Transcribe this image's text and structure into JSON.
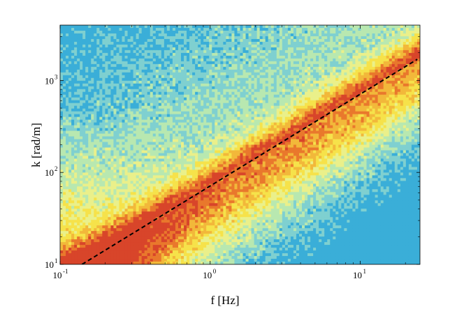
{
  "chart_data": {
    "type": "heatmap",
    "title": "",
    "xlabel": "f [Hz]",
    "ylabel": "k [rad/m]",
    "x_scale": "log",
    "y_scale": "log",
    "xlim": [
      0.1,
      25
    ],
    "ylim": [
      10,
      4000
    ],
    "x_ticks": [
      {
        "value": 0.1,
        "base": "10",
        "exp": "-1"
      },
      {
        "value": 1,
        "base": "10",
        "exp": "0"
      },
      {
        "value": 10,
        "base": "10",
        "exp": "1"
      }
    ],
    "y_ticks": [
      {
        "value": 10,
        "base": "10",
        "exp": "1"
      },
      {
        "value": 100,
        "base": "10",
        "exp": "2"
      },
      {
        "value": 1000,
        "base": "10",
        "exp": "3"
      }
    ],
    "colormap": [
      "#3aaed8",
      "#7fd0d0",
      "#b8e8b0",
      "#eaf08a",
      "#f6e24a",
      "#f2b83a",
      "#e9782c",
      "#d8452a"
    ],
    "grid": false,
    "legend": "none",
    "dashed_line": {
      "style": "dashed",
      "color": "#000000",
      "x": [
        0.14,
        24
      ],
      "y": [
        10,
        1700
      ]
    }
  }
}
